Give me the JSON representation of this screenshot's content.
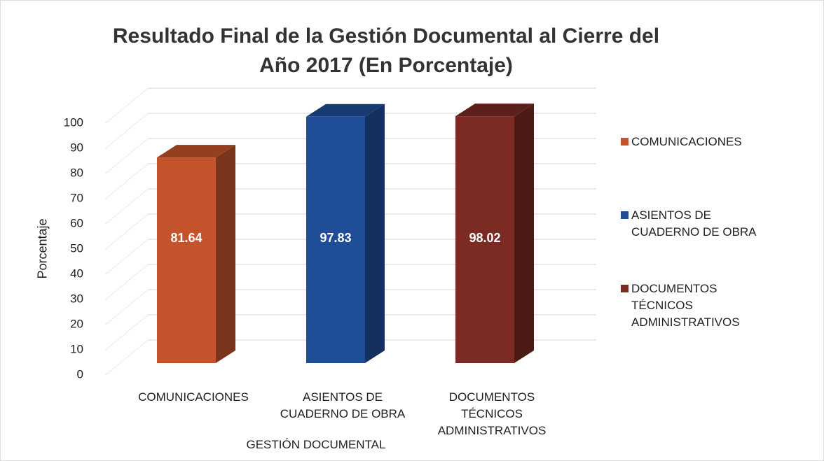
{
  "chart_data": {
    "type": "bar3d",
    "title": "Resultado Final de la Gestión Documental al Cierre del Año 2017  (En Porcentaje)",
    "xlabel": "GESTIÓN DOCUMENTAL",
    "ylabel": "Porcentaje",
    "categories": [
      "COMUNICACIONES",
      "ASIENTOS DE CUADERNO DE OBRA",
      "DOCUMENTOS TÉCNICOS ADMINISTRATIVOS"
    ],
    "values": [
      81.64,
      97.83,
      98.02
    ],
    "colors": [
      "#c4542b",
      "#1f4d97",
      "#7b2b24"
    ],
    "ylim": [
      0,
      100
    ],
    "yticks": [
      0,
      10,
      20,
      30,
      40,
      50,
      60,
      70,
      80,
      90,
      100
    ],
    "grid": true,
    "legend": "right"
  }
}
